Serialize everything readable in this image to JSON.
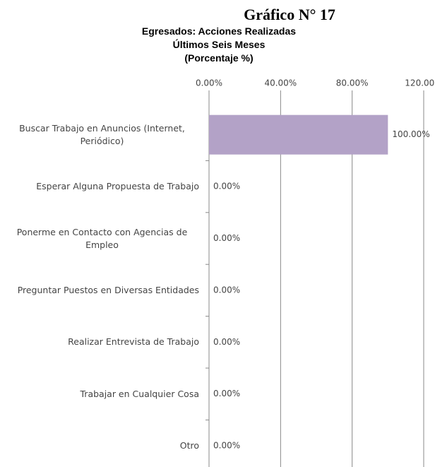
{
  "chart_data": {
    "type": "barh",
    "title": "Gráfico N° 17",
    "subtitle": [
      "Egresados: Acciones Realizadas",
      "Últimos Seis Meses",
      "(Porcentaje %)"
    ],
    "categories": [
      "Buscar Trabajo en Anuncios (Internet, Periódico)",
      "Esperar Alguna Propuesta de Trabajo",
      "Ponerme en Contacto con Agencias de Empleo",
      "Preguntar Puestos en Diversas Entidades",
      "Realizar Entrevista de Trabajo",
      "Trabajar en Cualquier Cosa",
      "Otro"
    ],
    "values": [
      100,
      0,
      0,
      0,
      0,
      0,
      0
    ],
    "value_labels": [
      "100.00%",
      "0.00%",
      "0.00%",
      "0.00%",
      "0.00%",
      "0.00%",
      "0.00%"
    ],
    "color": "#b3a2c7",
    "xlim": [
      0,
      120
    ],
    "xticks": [
      {
        "value": 0,
        "label": "0.00%"
      },
      {
        "value": 40,
        "label": "40.00%"
      },
      {
        "value": 80,
        "label": "80.00%"
      },
      {
        "value": 120,
        "label": "120.00%"
      }
    ],
    "grid": true
  }
}
